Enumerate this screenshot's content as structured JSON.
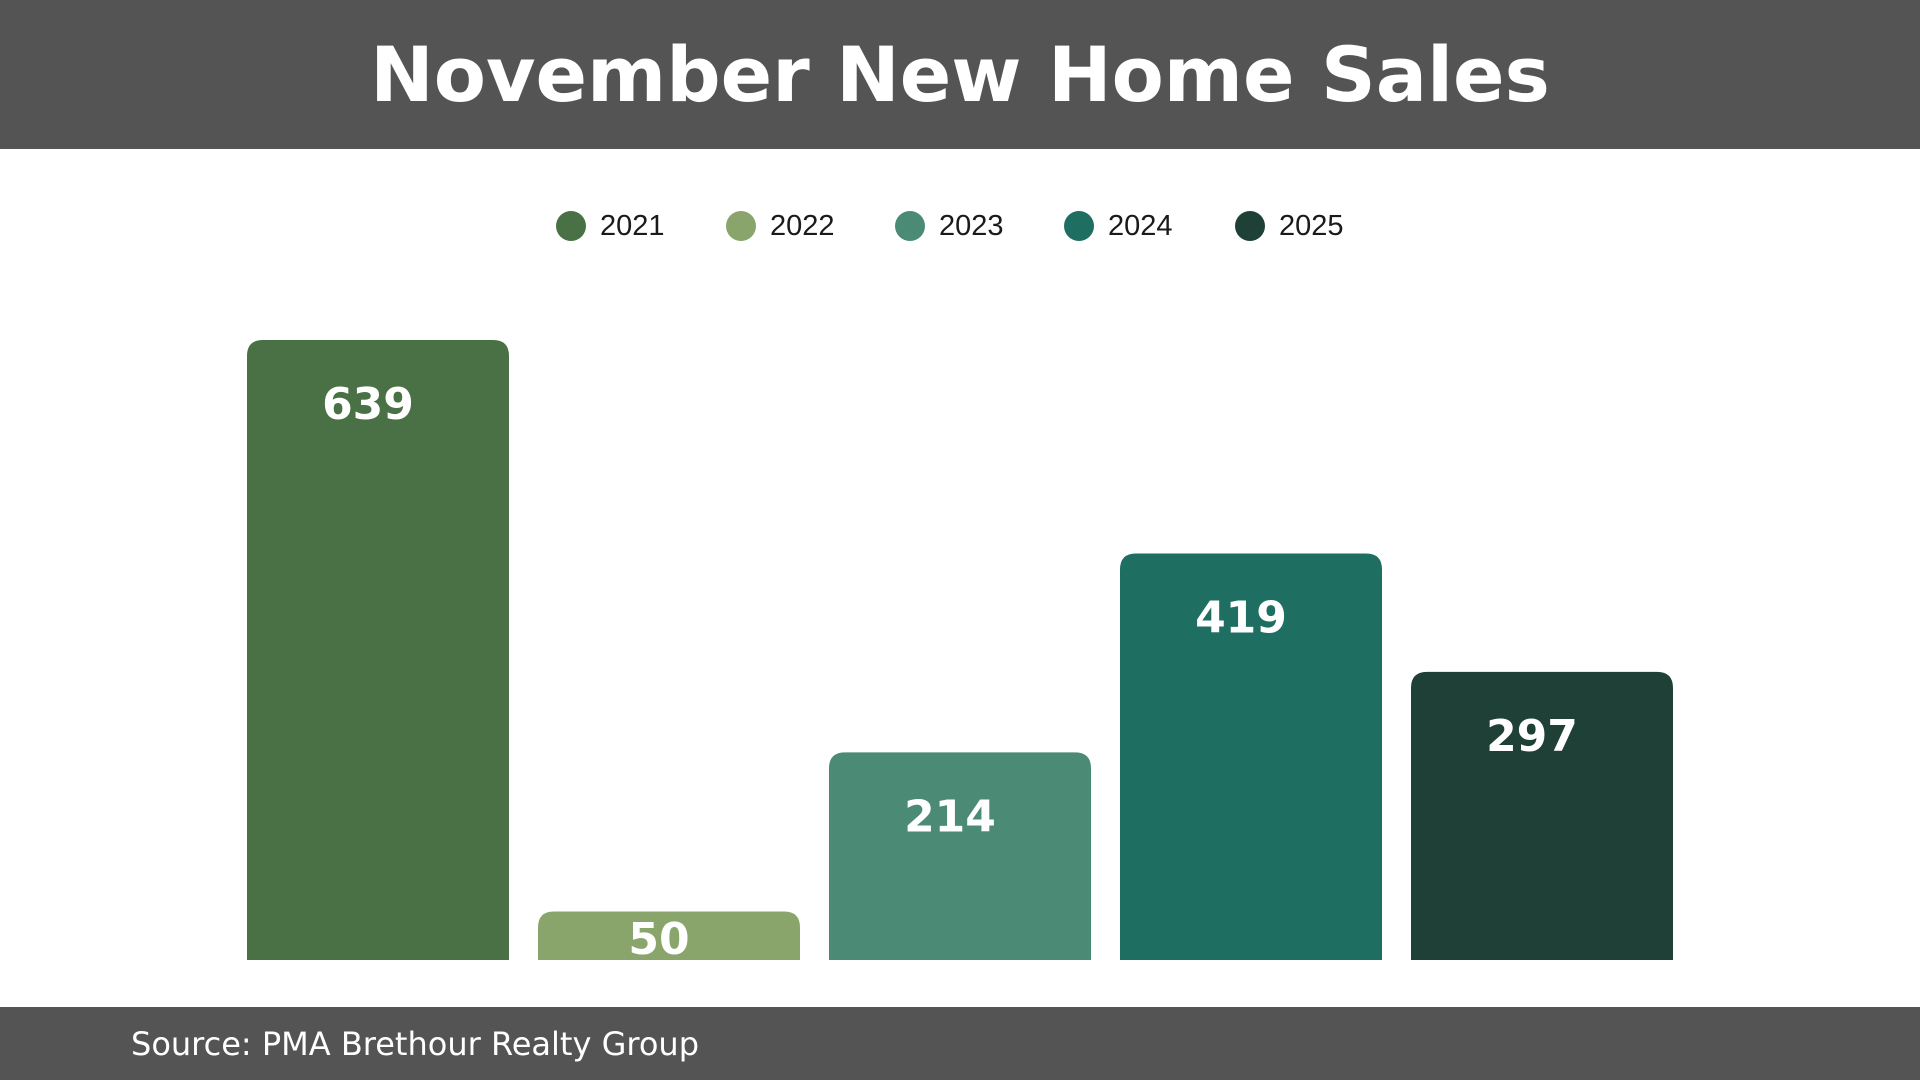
{
  "header": {
    "title": "November New Home Sales"
  },
  "footer": {
    "source": "Source: PMA Brethour Realty Group"
  },
  "colors": {
    "band": "#545454",
    "series": [
      "#4a7045",
      "#8aa56c",
      "#4b8b76",
      "#1f6e62",
      "#1f4036"
    ]
  },
  "chart_data": {
    "type": "bar",
    "title": "November New Home Sales",
    "categories": [
      "2021",
      "2022",
      "2023",
      "2024",
      "2025"
    ],
    "values": [
      639,
      50,
      214,
      419,
      297
    ],
    "data_labels": [
      "639",
      "50",
      "214",
      "419",
      "297"
    ],
    "legend": {
      "entries": [
        "2021",
        "2022",
        "2023",
        "2024",
        "2025"
      ],
      "placement": "top-center"
    },
    "xlabel": "",
    "ylabel": "",
    "ylim": [
      0,
      639
    ],
    "grid": false,
    "axes_visible": false
  }
}
